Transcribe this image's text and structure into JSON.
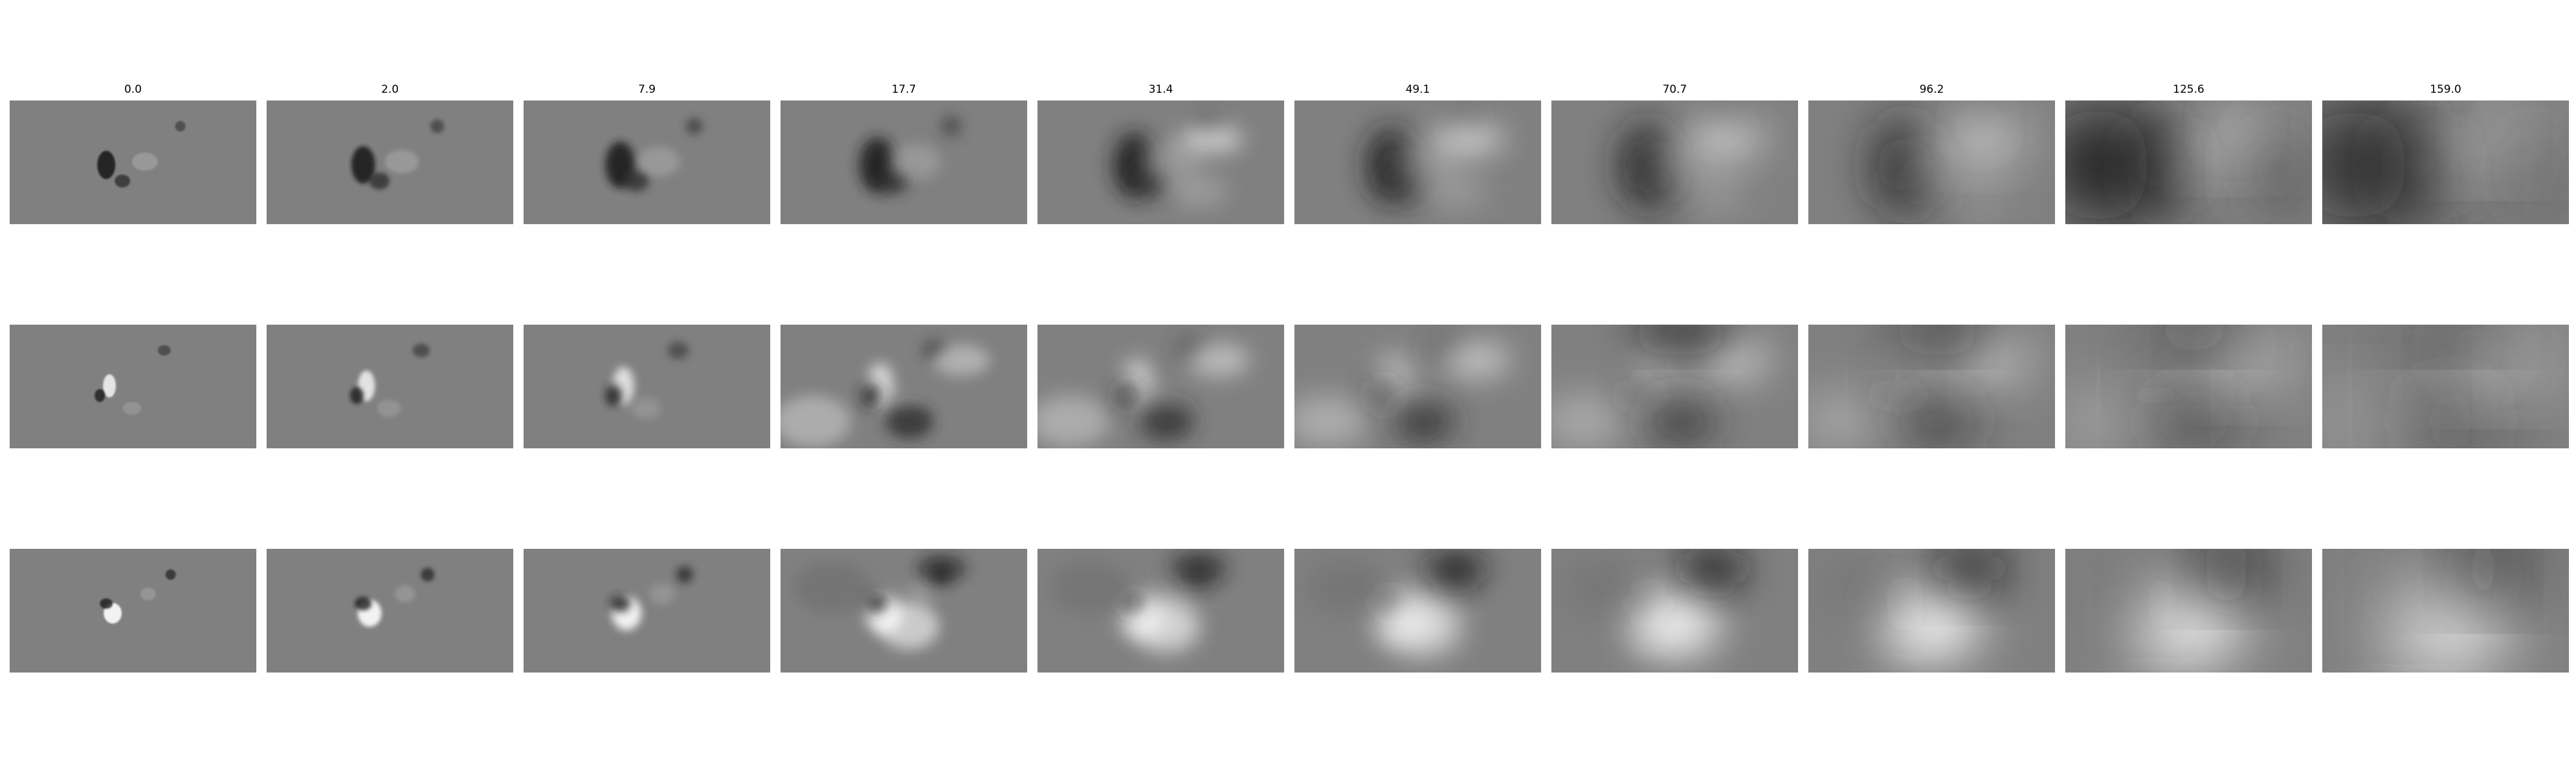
{
  "figure": {
    "column_titles": [
      "0.0",
      "2.0",
      "7.9",
      "17.7",
      "31.4",
      "49.1",
      "70.7",
      "96.2",
      "125.6",
      "159.0"
    ],
    "row_count": 3,
    "colormap": "grayscale",
    "background_color": "#808080"
  }
}
